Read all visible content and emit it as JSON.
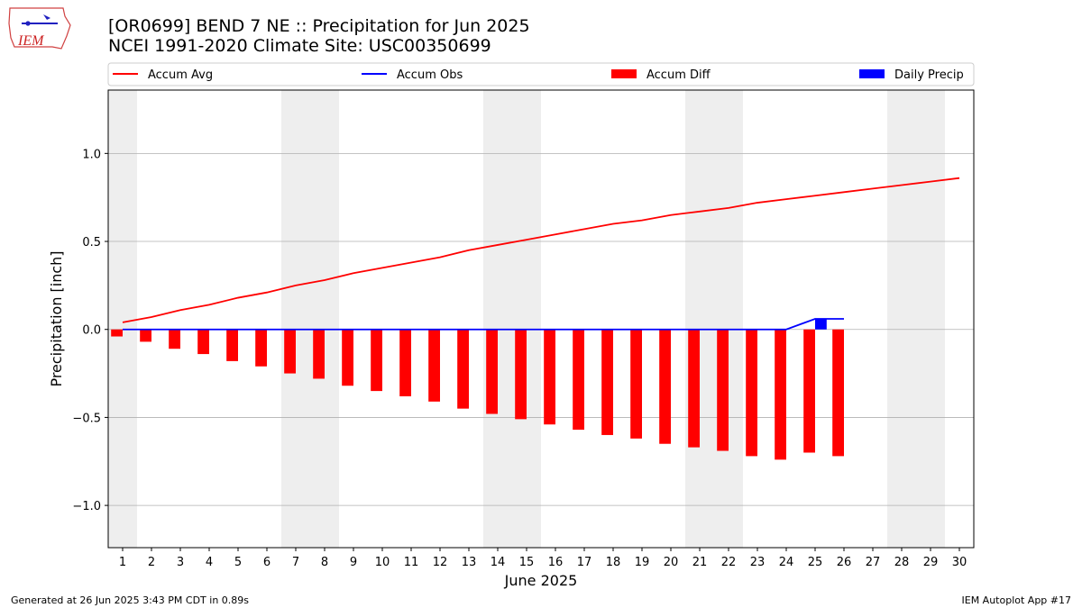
{
  "header": {
    "title": "[OR0699] BEND 7 NE :: Precipitation for Jun 2025",
    "subtitle": "NCEI 1991-2020 Climate Site: USC00350699",
    "logo_text": "IEM"
  },
  "footer": {
    "generated": "Generated at 26 Jun 2025 3:43 PM CDT in 0.89s",
    "app": "IEM Autoplot App #17"
  },
  "colors": {
    "avg": "#ff0000",
    "obs": "#0000ff",
    "diff": "#ff0000",
    "daily": "#0000ff",
    "weekend_shade": "#eeeeee",
    "grid": "#b0b0b0"
  },
  "chart_data": {
    "type": "bar",
    "xlabel": "June 2025",
    "ylabel": "Precipitation [inch]",
    "xlim": [
      0.5,
      30.5
    ],
    "ylim": [
      -1.24,
      1.36
    ],
    "yticks": [
      -1.0,
      -0.5,
      0.0,
      0.5,
      1.0
    ],
    "ytick_labels": [
      "−1.0",
      "−0.5",
      "0.0",
      "0.5",
      "1.0"
    ],
    "grid": "horizontal",
    "legend": "top, single row above plot",
    "legend_entries": [
      "Accum Avg",
      "Accum Obs",
      "Accum Diff",
      "Daily Precip"
    ],
    "days": [
      1,
      2,
      3,
      4,
      5,
      6,
      7,
      8,
      9,
      10,
      11,
      12,
      13,
      14,
      15,
      16,
      17,
      18,
      19,
      20,
      21,
      22,
      23,
      24,
      25,
      26,
      27,
      28,
      29,
      30
    ],
    "weekend_days": [
      1,
      7,
      8,
      14,
      15,
      21,
      22,
      28,
      29
    ],
    "series": [
      {
        "name": "Accum Avg",
        "kind": "line",
        "values": [
          0.04,
          0.07,
          0.11,
          0.14,
          0.18,
          0.21,
          0.25,
          0.28,
          0.32,
          0.35,
          0.38,
          0.41,
          0.45,
          0.48,
          0.51,
          0.54,
          0.57,
          0.6,
          0.62,
          0.65,
          0.67,
          0.69,
          0.72,
          0.74,
          0.76,
          0.78,
          0.8,
          0.82,
          0.84,
          0.86
        ]
      },
      {
        "name": "Accum Obs",
        "kind": "line",
        "values": [
          0,
          0,
          0,
          0,
          0,
          0,
          0,
          0,
          0,
          0,
          0,
          0,
          0,
          0,
          0,
          0,
          0,
          0,
          0,
          0,
          0,
          0,
          0,
          0,
          0.06,
          0.06
        ]
      },
      {
        "name": "Accum Diff",
        "kind": "bar",
        "values": [
          -0.04,
          -0.07,
          -0.11,
          -0.14,
          -0.18,
          -0.21,
          -0.25,
          -0.28,
          -0.32,
          -0.35,
          -0.38,
          -0.41,
          -0.45,
          -0.48,
          -0.51,
          -0.54,
          -0.57,
          -0.6,
          -0.62,
          -0.65,
          -0.67,
          -0.69,
          -0.72,
          -0.74,
          -0.7,
          -0.72
        ]
      },
      {
        "name": "Daily Precip",
        "kind": "bar",
        "values": [
          0,
          0,
          0,
          0,
          0,
          0,
          0,
          0,
          0,
          0,
          0,
          0,
          0,
          0,
          0,
          0,
          0,
          0,
          0,
          0,
          0,
          0,
          0,
          0,
          0.06,
          0
        ]
      }
    ]
  }
}
